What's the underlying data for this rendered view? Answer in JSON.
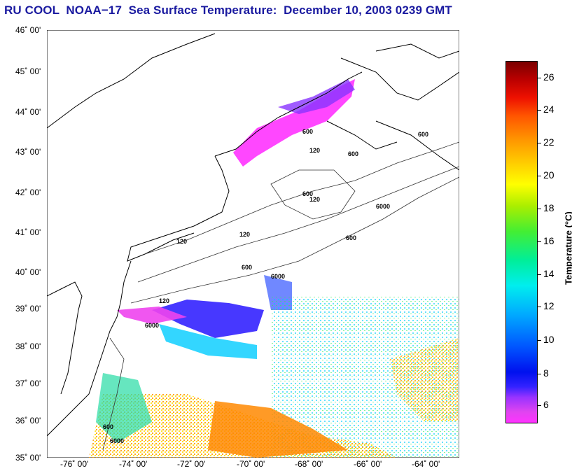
{
  "title": "RU COOL  NOAA−17  Sea Surface Temperature:  December 10, 2003 0239 GMT",
  "map": {
    "lat_labels": [
      "46˚ 00'",
      "45˚ 00'",
      "44˚ 00'",
      "43˚ 00'",
      "42˚ 00'",
      "41˚ 00'",
      "40˚ 00'",
      "39˚ 00'",
      "38˚ 00'",
      "37˚ 00'",
      "36˚ 00'",
      "35˚ 00'"
    ],
    "lon_labels": [
      "-76˚ 00'",
      "-74˚ 00'",
      "-72˚ 00'",
      "-70˚ 00'",
      "-68˚ 00'",
      "-66˚ 00'",
      "-64˚ 00'"
    ],
    "lat_range": [
      35,
      46
    ],
    "lon_range": [
      -77,
      -63.3
    ],
    "contour_labels": [
      "600",
      "600",
      "120",
      "600",
      "120",
      "600",
      "6000",
      "120",
      "600",
      "6000",
      "120",
      "600",
      "6000",
      "120",
      "6000",
      "600"
    ],
    "coastline_color": "#000000",
    "land_color": "#ffffff"
  },
  "colorbar": {
    "label": "Temperature (°C)",
    "ticks": [
      "26",
      "24",
      "22",
      "20",
      "18",
      "16",
      "14",
      "12",
      "10",
      "8",
      "6"
    ],
    "range": [
      5,
      27
    ],
    "colors": [
      "#ff33ff",
      "#9933ff",
      "#0011ee",
      "#00aaff",
      "#00eeee",
      "#44ee33",
      "#ffff00",
      "#ff9900",
      "#ee1100",
      "#7a0000"
    ]
  }
}
